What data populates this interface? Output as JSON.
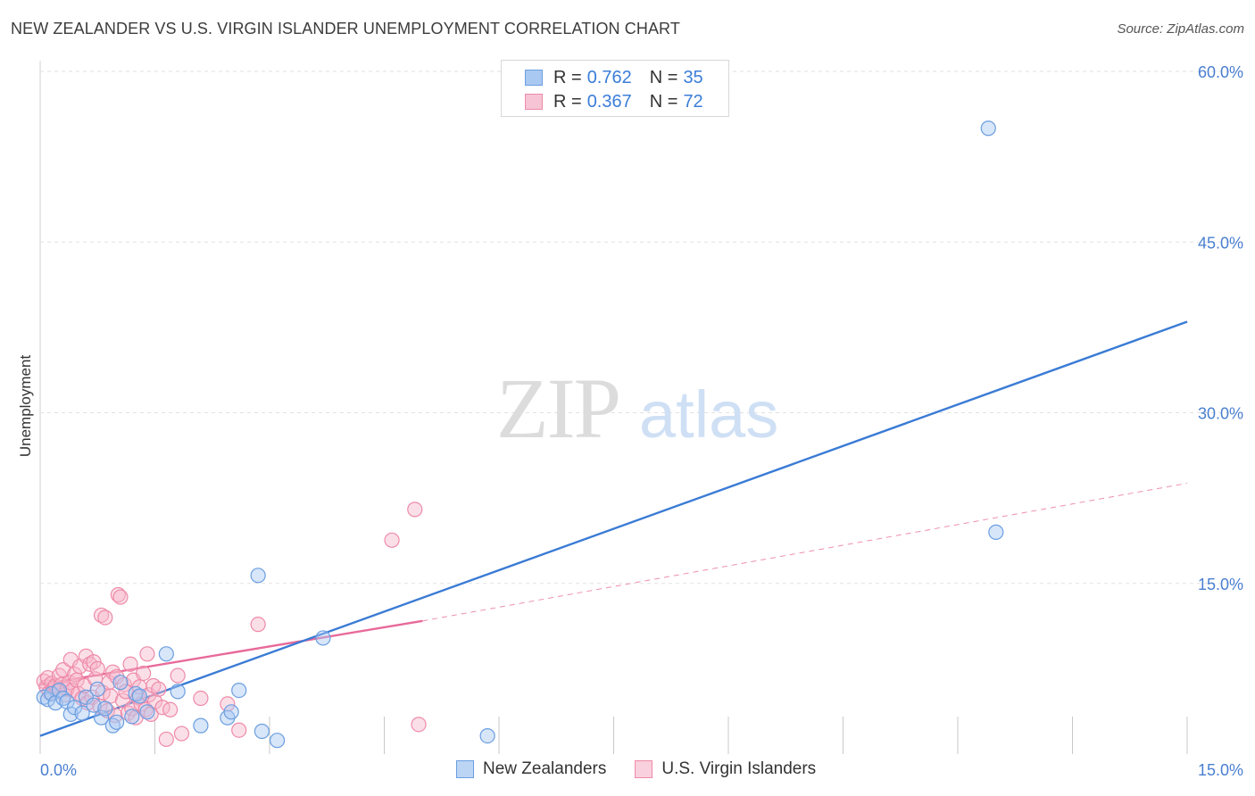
{
  "header": {
    "title": "NEW ZEALANDER VS U.S. VIRGIN ISLANDER UNEMPLOYMENT CORRELATION CHART",
    "source": "Source: ZipAtlas.com"
  },
  "watermark": {
    "zip": "ZIP",
    "atlas": "atlas"
  },
  "legend": {
    "series1": {
      "r_label": "R = ",
      "r_value": "0.762",
      "n_label": "N = ",
      "n_value": "35"
    },
    "series2": {
      "r_label": "R = ",
      "r_value": "0.367",
      "n_label": "N = ",
      "n_value": "72"
    }
  },
  "bottom_legend": {
    "series1_label": "New Zealanders",
    "series2_label": "U.S. Virgin Islanders"
  },
  "chart_data": {
    "type": "scatter",
    "title": "NEW ZEALANDER VS U.S. VIRGIN ISLANDER UNEMPLOYMENT CORRELATION CHART",
    "xlabel": "",
    "ylabel": "Unemployment",
    "xlim": [
      0,
      15
    ],
    "ylim": [
      0,
      60
    ],
    "x_tick_labels": [
      "0.0%",
      "15.0%"
    ],
    "y_ticks": [
      15,
      30,
      45,
      60
    ],
    "y_tick_labels": [
      "15.0%",
      "30.0%",
      "45.0%",
      "60.0%"
    ],
    "colors": {
      "series1_fill": "#a9c8f2",
      "series1_stroke": "#6a9ee0",
      "series1_line": "#3a7bd5",
      "series2_fill": "#f6b8cb",
      "series2_stroke": "#ee8aa8",
      "series2_line": "#e8699a",
      "tick_text": "#4a7fd0"
    },
    "series": [
      {
        "name": "New Zealanders",
        "points": [
          [
            0.05,
            5.0
          ],
          [
            0.1,
            4.8
          ],
          [
            0.15,
            5.3
          ],
          [
            0.2,
            4.5
          ],
          [
            0.25,
            5.6
          ],
          [
            0.3,
            4.9
          ],
          [
            0.35,
            4.6
          ],
          [
            0.4,
            3.5
          ],
          [
            0.45,
            4.1
          ],
          [
            0.55,
            3.6
          ],
          [
            0.6,
            5.0
          ],
          [
            0.7,
            4.3
          ],
          [
            0.75,
            5.7
          ],
          [
            0.8,
            3.2
          ],
          [
            0.85,
            4.0
          ],
          [
            0.95,
            2.5
          ],
          [
            1.0,
            2.8
          ],
          [
            1.05,
            6.3
          ],
          [
            1.2,
            3.3
          ],
          [
            1.25,
            5.3
          ],
          [
            1.3,
            5.1
          ],
          [
            1.4,
            3.7
          ],
          [
            1.65,
            8.8
          ],
          [
            1.8,
            5.5
          ],
          [
            2.1,
            2.5
          ],
          [
            2.45,
            3.2
          ],
          [
            2.5,
            3.7
          ],
          [
            2.6,
            5.6
          ],
          [
            2.85,
            15.7
          ],
          [
            2.9,
            2.0
          ],
          [
            3.1,
            1.2
          ],
          [
            3.7,
            10.2
          ],
          [
            5.85,
            1.6
          ],
          [
            12.4,
            55.0
          ],
          [
            12.5,
            19.5
          ]
        ],
        "trendline": {
          "style": "solid",
          "x": [
            0,
            15
          ],
          "y": [
            1.6,
            38.0
          ]
        }
      },
      {
        "name": "U.S. Virgin Islanders",
        "points": [
          [
            0.05,
            6.4
          ],
          [
            0.08,
            5.9
          ],
          [
            0.1,
            6.7
          ],
          [
            0.12,
            5.4
          ],
          [
            0.15,
            6.2
          ],
          [
            0.18,
            5.8
          ],
          [
            0.2,
            6.0
          ],
          [
            0.22,
            5.5
          ],
          [
            0.25,
            6.9
          ],
          [
            0.28,
            6.1
          ],
          [
            0.3,
            7.4
          ],
          [
            0.32,
            5.2
          ],
          [
            0.35,
            5.7
          ],
          [
            0.38,
            6.3
          ],
          [
            0.4,
            8.3
          ],
          [
            0.42,
            5.6
          ],
          [
            0.45,
            7.0
          ],
          [
            0.48,
            6.5
          ],
          [
            0.5,
            5.3
          ],
          [
            0.52,
            7.7
          ],
          [
            0.55,
            4.9
          ],
          [
            0.58,
            6.0
          ],
          [
            0.6,
            8.6
          ],
          [
            0.62,
            4.5
          ],
          [
            0.65,
            7.9
          ],
          [
            0.68,
            5.0
          ],
          [
            0.7,
            8.1
          ],
          [
            0.72,
            6.6
          ],
          [
            0.75,
            7.5
          ],
          [
            0.78,
            4.2
          ],
          [
            0.8,
            12.2
          ],
          [
            0.82,
            5.4
          ],
          [
            0.85,
            12.0
          ],
          [
            0.88,
            3.8
          ],
          [
            0.9,
            6.3
          ],
          [
            0.92,
            5.1
          ],
          [
            0.95,
            7.2
          ],
          [
            0.98,
            3.4
          ],
          [
            1.0,
            6.8
          ],
          [
            1.02,
            14.0
          ],
          [
            1.05,
            13.8
          ],
          [
            1.08,
            4.7
          ],
          [
            1.1,
            6.1
          ],
          [
            1.12,
            5.5
          ],
          [
            1.15,
            3.6
          ],
          [
            1.18,
            7.9
          ],
          [
            1.2,
            4.0
          ],
          [
            1.22,
            6.5
          ],
          [
            1.25,
            3.2
          ],
          [
            1.28,
            5.0
          ],
          [
            1.3,
            5.9
          ],
          [
            1.32,
            4.4
          ],
          [
            1.35,
            7.1
          ],
          [
            1.38,
            3.9
          ],
          [
            1.4,
            8.8
          ],
          [
            1.42,
            5.2
          ],
          [
            1.45,
            3.5
          ],
          [
            1.48,
            6.0
          ],
          [
            1.5,
            4.6
          ],
          [
            1.55,
            5.7
          ],
          [
            1.6,
            4.1
          ],
          [
            1.65,
            1.3
          ],
          [
            1.7,
            3.9
          ],
          [
            1.8,
            6.9
          ],
          [
            1.85,
            1.8
          ],
          [
            2.1,
            4.9
          ],
          [
            2.45,
            4.4
          ],
          [
            2.6,
            2.1
          ],
          [
            2.85,
            11.4
          ],
          [
            4.6,
            18.8
          ],
          [
            4.9,
            21.5
          ],
          [
            4.95,
            2.6
          ]
        ],
        "trendline": {
          "style": "solid",
          "x": [
            0,
            5.0
          ],
          "y": [
            6.1,
            11.7
          ]
        },
        "trendline_extension": {
          "style": "dashed",
          "x": [
            5.0,
            15
          ],
          "y": [
            11.7,
            23.8
          ]
        }
      }
    ]
  }
}
